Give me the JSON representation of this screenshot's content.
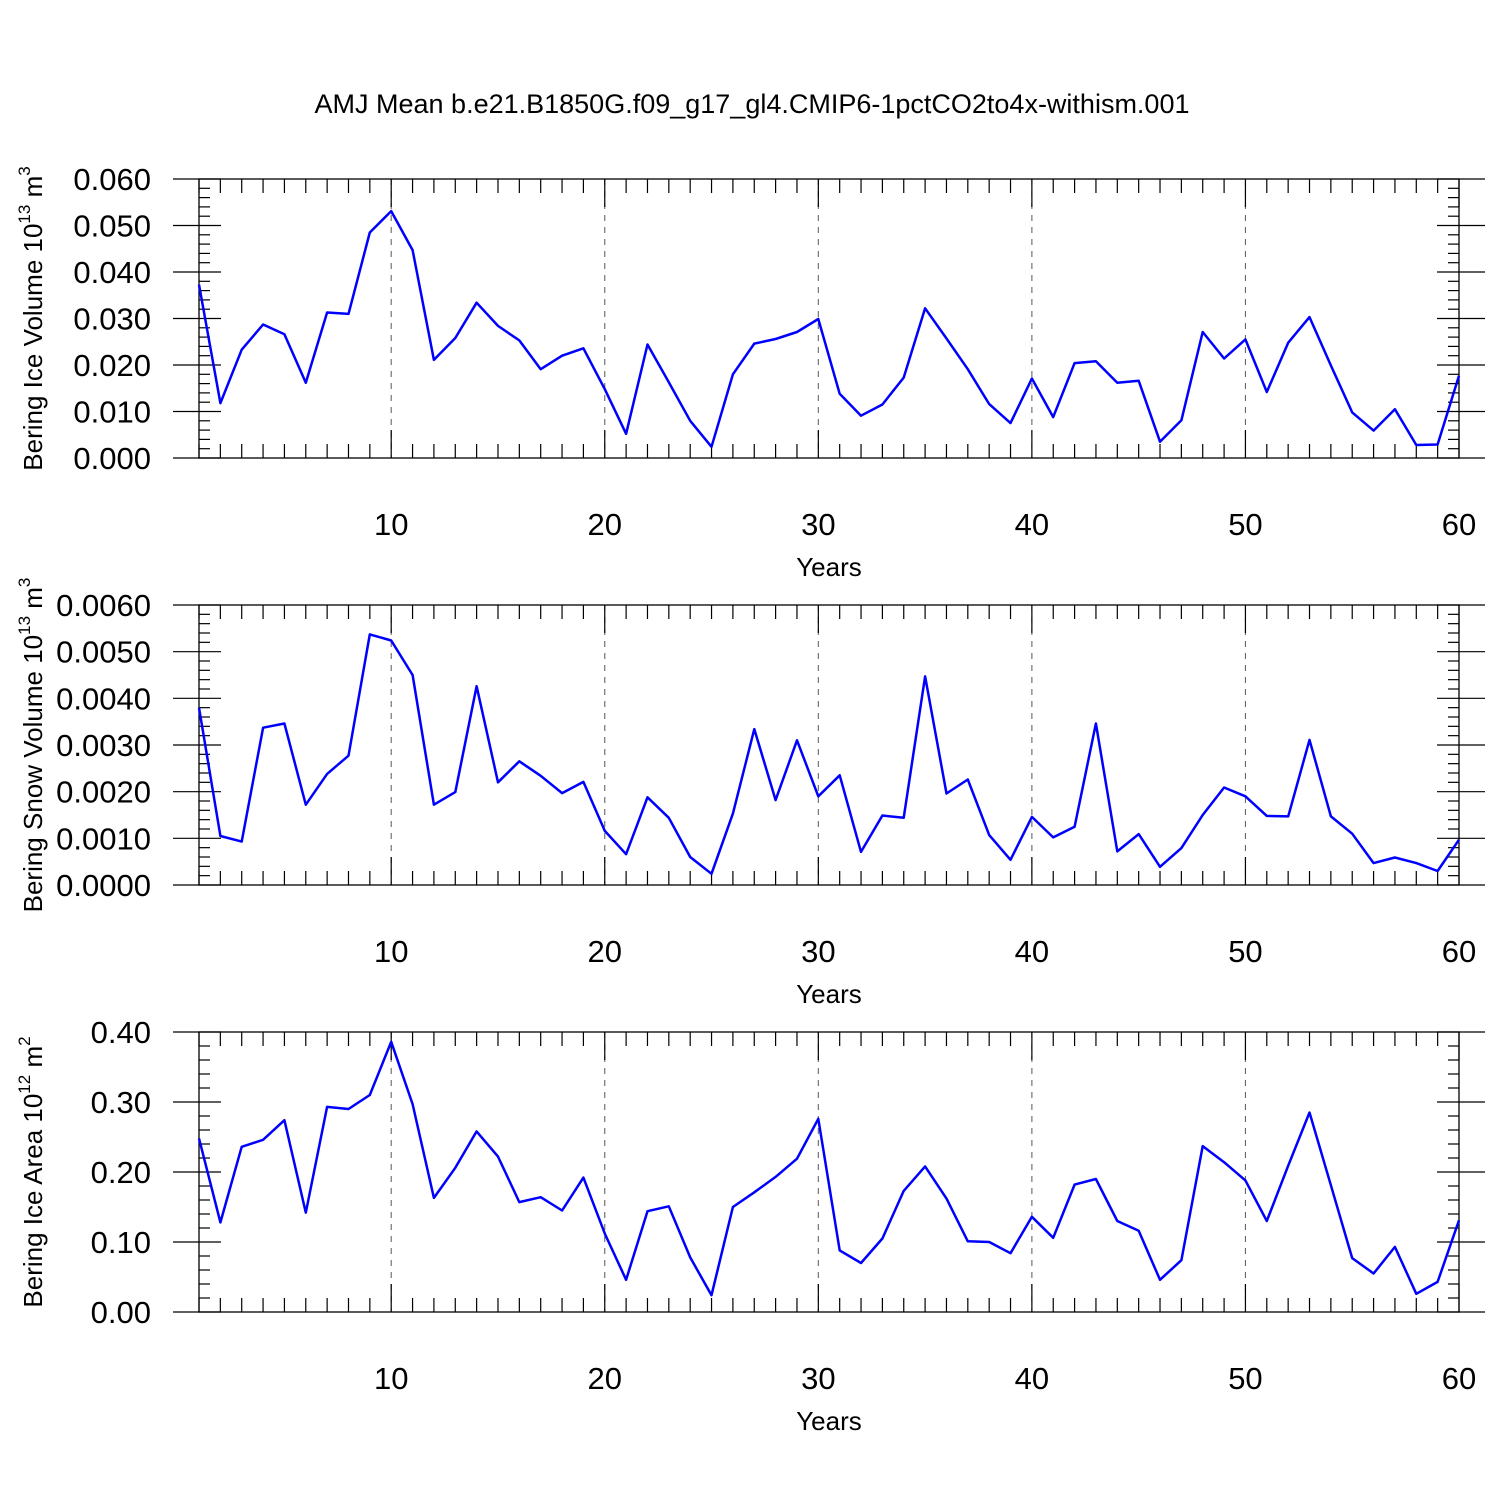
{
  "title": "AMJ Mean b.e21.B1850G.f09_g17_gl4.CMIP6-1pctCO2to4x-withism.001",
  "colors": {
    "series": "#0000ff",
    "grid": "#666666"
  },
  "chart_data": [
    {
      "type": "line",
      "title": "",
      "xlabel": "Years",
      "ylabel": "Bering Ice Volume 10",
      "ylabel_exp": "13",
      "ylabel_unit": " m",
      "ylabel_unit_exp": "3",
      "xlim": [
        1,
        60
      ],
      "ylim": [
        0,
        0.06
      ],
      "xticks": [
        10,
        20,
        30,
        40,
        50,
        60
      ],
      "yticks": [
        "0.000",
        "0.010",
        "0.020",
        "0.030",
        "0.040",
        "0.050",
        "0.060"
      ],
      "grid": "dashed vertical at major x ticks",
      "x": [
        1,
        2,
        3,
        4,
        5,
        6,
        7,
        8,
        9,
        10,
        11,
        12,
        13,
        14,
        15,
        16,
        17,
        18,
        19,
        20,
        21,
        22,
        23,
        24,
        25,
        26,
        27,
        28,
        29,
        30,
        31,
        32,
        33,
        34,
        35,
        36,
        37,
        38,
        39,
        40,
        41,
        42,
        43,
        44,
        45,
        46,
        47,
        48,
        49,
        50,
        51,
        52,
        53,
        54,
        55,
        56,
        57,
        58,
        59,
        60
      ],
      "values": [
        0.0373,
        0.0118,
        0.0233,
        0.0287,
        0.0266,
        0.0162,
        0.0313,
        0.031,
        0.0485,
        0.0531,
        0.0447,
        0.0211,
        0.0258,
        0.0334,
        0.0284,
        0.0253,
        0.0191,
        0.022,
        0.0236,
        0.0148,
        0.0052,
        0.0244,
        0.0163,
        0.008,
        0.0024,
        0.018,
        0.0246,
        0.0256,
        0.0271,
        0.0299,
        0.0138,
        0.0091,
        0.0115,
        0.0173,
        0.0322,
        0.0257,
        0.0191,
        0.0116,
        0.0075,
        0.0171,
        0.0088,
        0.0204,
        0.0208,
        0.0162,
        0.0166,
        0.0035,
        0.0081,
        0.0271,
        0.0214,
        0.0255,
        0.0142,
        0.0248,
        0.0303,
        0.0199,
        0.0098,
        0.0059,
        0.0105,
        0.0028,
        0.0029,
        0.0177
      ]
    },
    {
      "type": "line",
      "title": "",
      "xlabel": "Years",
      "ylabel": "Bering Snow Volume 10",
      "ylabel_exp": "13",
      "ylabel_unit": " m",
      "ylabel_unit_exp": "3",
      "xlim": [
        1,
        60
      ],
      "ylim": [
        0,
        0.006
      ],
      "xticks": [
        10,
        20,
        30,
        40,
        50,
        60
      ],
      "yticks": [
        "0.0000",
        "0.0010",
        "0.0020",
        "0.0030",
        "0.0040",
        "0.0050",
        "0.0060"
      ],
      "grid": "dashed vertical at major x ticks",
      "x": [
        1,
        2,
        3,
        4,
        5,
        6,
        7,
        8,
        9,
        10,
        11,
        12,
        13,
        14,
        15,
        16,
        17,
        18,
        19,
        20,
        21,
        22,
        23,
        24,
        25,
        26,
        27,
        28,
        29,
        30,
        31,
        32,
        33,
        34,
        35,
        36,
        37,
        38,
        39,
        40,
        41,
        42,
        43,
        44,
        45,
        46,
        47,
        48,
        49,
        50,
        51,
        52,
        53,
        54,
        55,
        56,
        57,
        58,
        59,
        60
      ],
      "values": [
        0.0038,
        0.00105,
        0.00093,
        0.00337,
        0.00346,
        0.00172,
        0.00238,
        0.00277,
        0.00537,
        0.00524,
        0.0045,
        0.00172,
        0.00199,
        0.00426,
        0.0022,
        0.00265,
        0.00234,
        0.00197,
        0.00221,
        0.00116,
        0.00066,
        0.00188,
        0.00144,
        0.0006,
        0.00024,
        0.00153,
        0.00334,
        0.00182,
        0.0031,
        0.0019,
        0.00235,
        0.00071,
        0.00149,
        0.00144,
        0.00447,
        0.00196,
        0.00226,
        0.00107,
        0.00054,
        0.00146,
        0.00102,
        0.00125,
        0.00346,
        0.00072,
        0.00109,
        0.00039,
        0.00079,
        0.0015,
        0.00209,
        0.0019,
        0.00148,
        0.00147,
        0.00311,
        0.00147,
        0.0011,
        0.00047,
        0.00059,
        0.00047,
        0.0003,
        0.00097
      ]
    },
    {
      "type": "line",
      "title": "",
      "xlabel": "Years",
      "ylabel": "Bering Ice Area 10",
      "ylabel_exp": "12",
      "ylabel_unit": " m",
      "ylabel_unit_exp": "2",
      "xlim": [
        1,
        60
      ],
      "ylim": [
        0,
        0.4
      ],
      "xticks": [
        10,
        20,
        30,
        40,
        50,
        60
      ],
      "yticks": [
        "0.00",
        "0.10",
        "0.20",
        "0.30",
        "0.40"
      ],
      "grid": "dashed vertical at major x ticks",
      "x": [
        1,
        2,
        3,
        4,
        5,
        6,
        7,
        8,
        9,
        10,
        11,
        12,
        13,
        14,
        15,
        16,
        17,
        18,
        19,
        20,
        21,
        22,
        23,
        24,
        25,
        26,
        27,
        28,
        29,
        30,
        31,
        32,
        33,
        34,
        35,
        36,
        37,
        38,
        39,
        40,
        41,
        42,
        43,
        44,
        45,
        46,
        47,
        48,
        49,
        50,
        51,
        52,
        53,
        54,
        55,
        56,
        57,
        58,
        59,
        60
      ],
      "values": [
        0.248,
        0.128,
        0.236,
        0.246,
        0.274,
        0.142,
        0.293,
        0.29,
        0.31,
        0.386,
        0.297,
        0.163,
        0.206,
        0.258,
        0.222,
        0.157,
        0.164,
        0.145,
        0.192,
        0.112,
        0.046,
        0.144,
        0.151,
        0.078,
        0.024,
        0.15,
        0.171,
        0.193,
        0.219,
        0.276,
        0.088,
        0.07,
        0.105,
        0.173,
        0.208,
        0.162,
        0.101,
        0.1,
        0.084,
        0.136,
        0.106,
        0.182,
        0.19,
        0.13,
        0.116,
        0.046,
        0.074,
        0.237,
        0.214,
        0.188,
        0.13,
        0.209,
        0.285,
        0.181,
        0.077,
        0.055,
        0.093,
        0.026,
        0.043,
        0.131
      ]
    }
  ]
}
